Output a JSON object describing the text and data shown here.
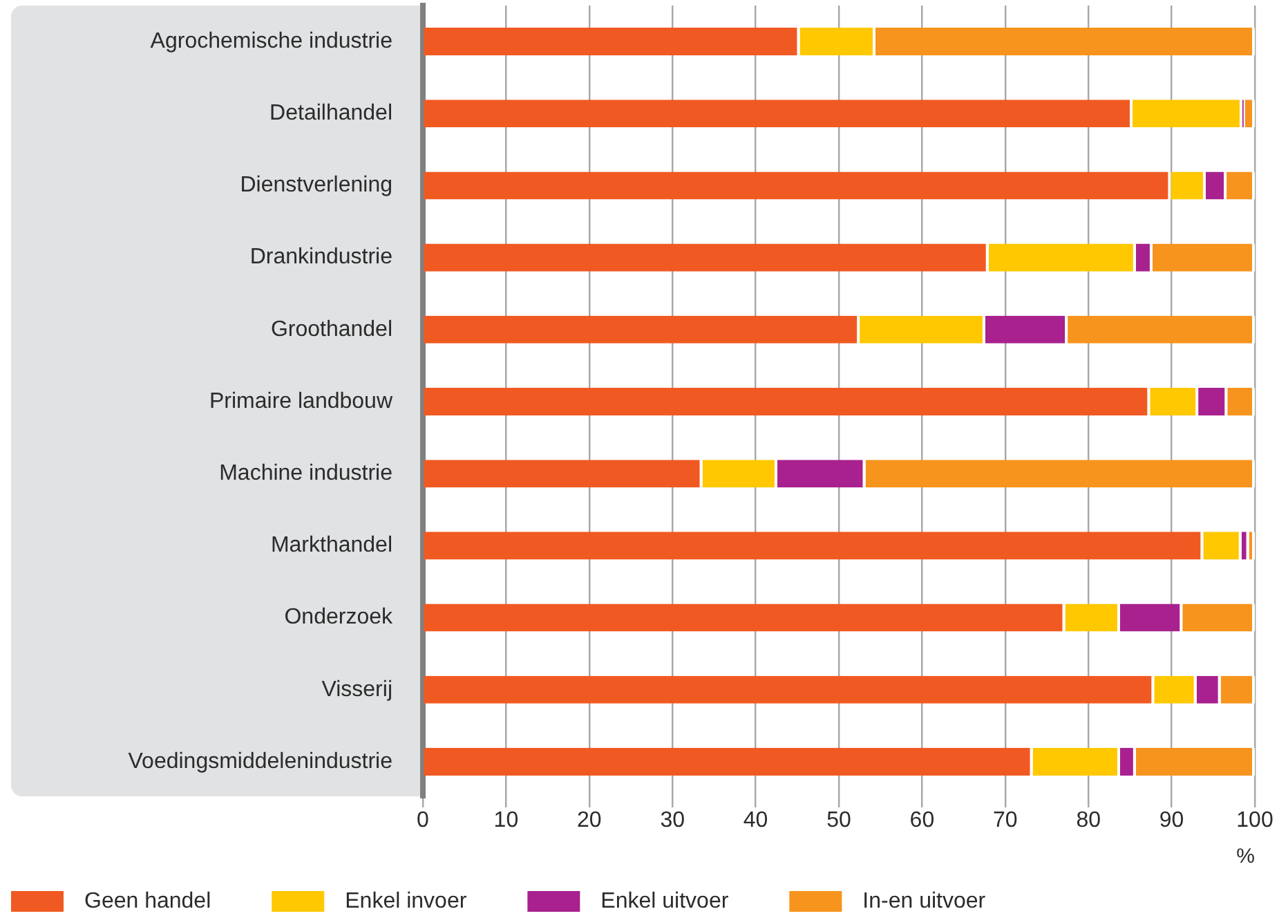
{
  "chart_data": {
    "type": "bar",
    "orientation": "horizontal",
    "stacked": true,
    "categories": [
      "Agrochemische industrie",
      "Detailhandel",
      "Dienstverlening",
      "Drankindustrie",
      "Groothandel",
      "Primaire landbouw",
      "Machine industrie",
      "Markthandel",
      "Onderzoek",
      "Visserij",
      "Voedingsmiddelenindustrie"
    ],
    "series": [
      {
        "name": "Geen handel",
        "color": "#f05a22",
        "values": [
          45.3,
          85.3,
          89.9,
          68.0,
          52.5,
          87.4,
          33.6,
          93.8,
          77.2,
          87.9,
          73.3
        ]
      },
      {
        "name": "Enkel invoer",
        "color": "#ffc800",
        "values": [
          9.1,
          13.2,
          4.2,
          17.7,
          15.1,
          5.8,
          9.0,
          4.6,
          6.6,
          5.1,
          10.5
        ]
      },
      {
        "name": "Enkel uitvoer",
        "color": "#a8218e",
        "values": [
          0,
          0.3,
          2.5,
          2.0,
          9.9,
          3.5,
          10.6,
          0.9,
          7.5,
          2.9,
          1.9
        ]
      },
      {
        "name": "In-en uitvoer",
        "color": "#f7941d",
        "values": [
          45.6,
          1.2,
          3.4,
          12.3,
          22.5,
          3.3,
          46.8,
          0.7,
          8.7,
          4.1,
          14.3
        ]
      }
    ],
    "xlim": [
      0,
      100
    ],
    "xticks": [
      0,
      10,
      20,
      30,
      40,
      50,
      60,
      70,
      80,
      90,
      100
    ],
    "xlabel": "%",
    "grid": "x",
    "legend": "bottom"
  }
}
